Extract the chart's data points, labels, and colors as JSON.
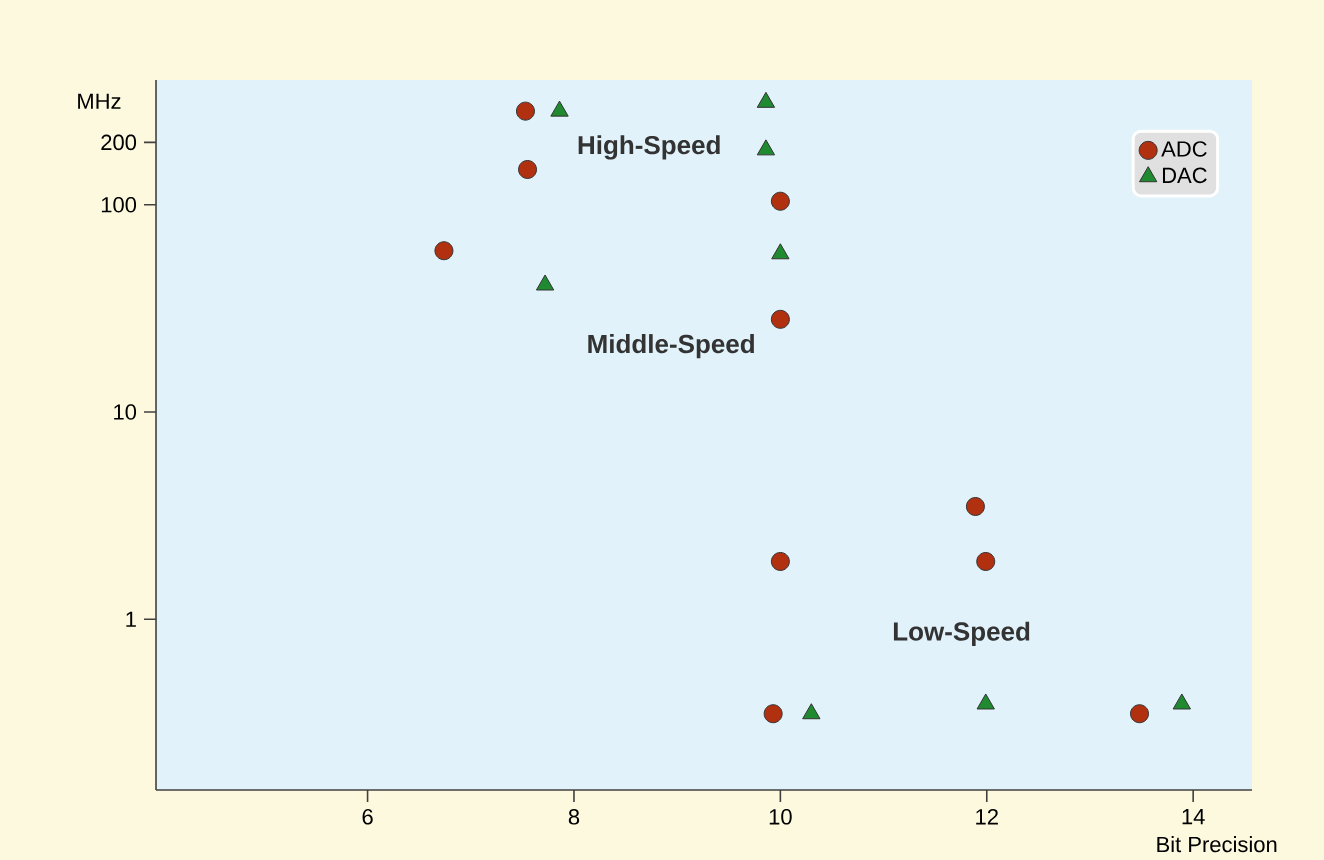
{
  "chart_data": {
    "type": "scatter",
    "xlabel": "Bit Precision",
    "ylabel": "MHz",
    "log": true,
    "xlim": [
      3.95,
      14.57
    ],
    "xticks": [
      6,
      8,
      10,
      12,
      14
    ],
    "ylim": [
      0.15,
      400
    ],
    "yticks": [
      1,
      10,
      100,
      200
    ],
    "series": [
      {
        "name": "ADC",
        "color": "#b03010",
        "marker": "circle",
        "x": [
          7.53,
          7.55,
          6.74,
          10.0,
          10.0,
          11.89,
          10.0,
          11.99,
          9.93,
          13.48
        ],
        "values": [
          283,
          148,
          60,
          104,
          28,
          3.5,
          1.9,
          1.9,
          0.35,
          0.35
        ]
      },
      {
        "name": "DAC",
        "color": "#1f8a30",
        "marker": "triangle",
        "x": [
          7.86,
          9.86,
          9.86,
          10.0,
          7.72,
          10.3,
          11.99,
          13.89
        ],
        "values": [
          283,
          312,
          184,
          58,
          41,
          0.35,
          0.39,
          0.39
        ]
      }
    ],
    "annotations": [
      "High-Speed",
      "Middle-Speed",
      "Low-Speed"
    ],
    "legend": "top right"
  }
}
